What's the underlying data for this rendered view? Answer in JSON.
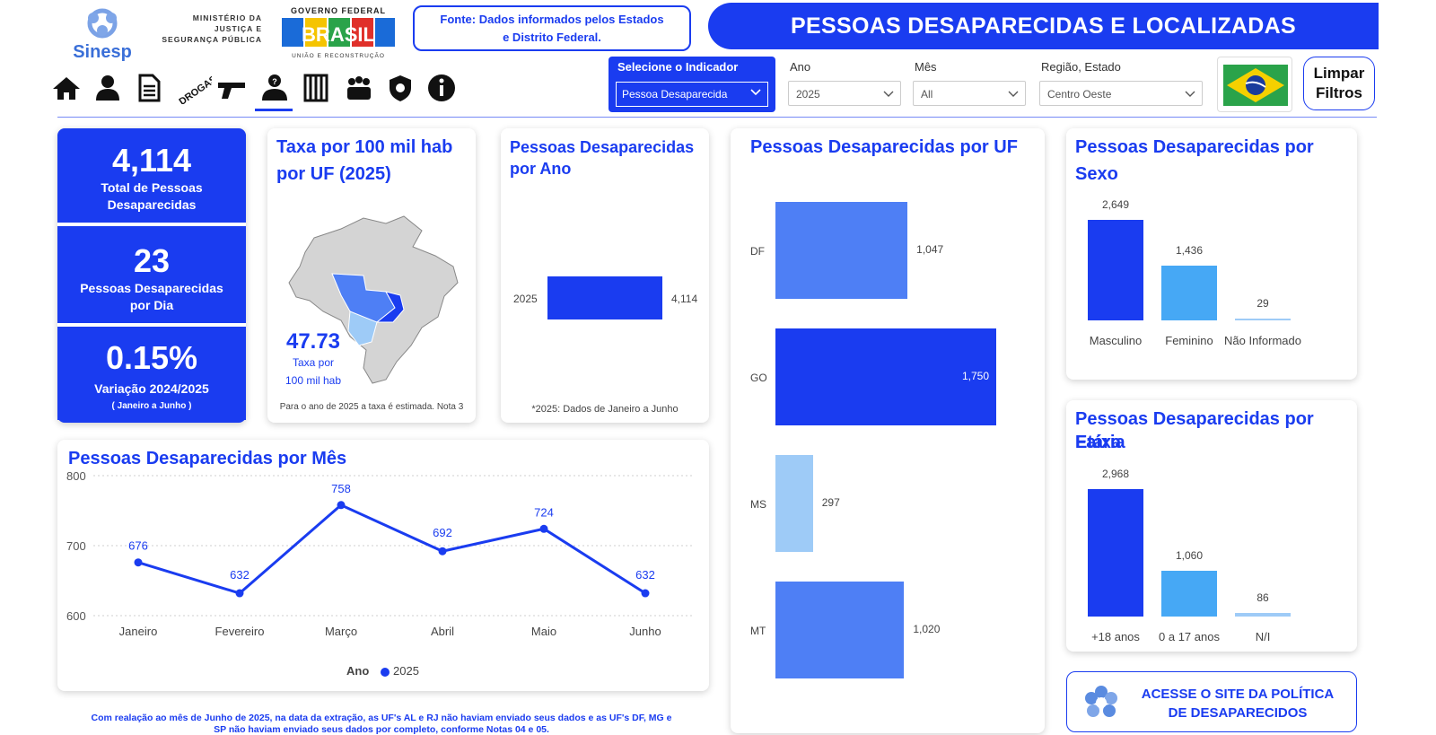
{
  "header": {
    "sinesp_logo_text": "Sinesp",
    "ministry_lines": [
      "MINISTÉRIO DA",
      "JUSTIÇA E",
      "SEGURANÇA PÚBLICA"
    ],
    "gov_logo": {
      "top": "GOVERNO FEDERAL",
      "word": "BRASIL",
      "bottom": "UNIÃO E RECONSTRUÇÃO"
    },
    "fonte_line1": "Fonte: Dados informados pelos Estados",
    "fonte_line2": "e Distrito Federal.",
    "title": "PESSOAS DESAPARECIDAS E LOCALIZADAS"
  },
  "nav": {
    "icons": [
      "home-icon",
      "person-icon",
      "document-icon",
      "drogas-icon",
      "gun-icon",
      "missing-person-icon",
      "prison-icon",
      "group-icon",
      "shield-icon",
      "info-icon"
    ],
    "drogas_label": "DROGAS",
    "active": "missing-person-icon"
  },
  "filters": {
    "indicator_label": "Selecione o Indicador",
    "indicator_value": "Pessoa Desaparecida",
    "ano_label": "Ano",
    "ano_value": "2025",
    "mes_label": "Mês",
    "mes_value": "All",
    "regiao_label": "Região, Estado",
    "regiao_value": "Centro Oeste",
    "limpar_line1": "Limpar",
    "limpar_line2": "Filtros"
  },
  "kpis": {
    "total_value": "4,114",
    "total_label_line1": "Total de Pessoas",
    "total_label_line2": "Desaparecidas",
    "dia_value": "23",
    "dia_label_line1": "Pessoas Desaparecidas",
    "dia_label_line2": "por Dia",
    "var_value": "0.15%",
    "var_label": "Variação 2024/2025",
    "var_sub": "( Janeiro a Junho )"
  },
  "taxa": {
    "title_line1": "Taxa por 100 mil hab",
    "title_line2": "por UF (2025)",
    "value": "47.73",
    "label_line1": "Taxa por",
    "label_line2": "100 mil hab",
    "note": "Para o ano de 2025 a taxa é estimada. Nota 3"
  },
  "ano_card": {
    "title_line1": "Pessoas Desaparecidas",
    "title_line2": "por Ano",
    "note": "*2025: Dados de Janeiro a Junho"
  },
  "mes_card": {
    "title": "Pessoas Desaparecidas por Mês",
    "legend_label": "Ano",
    "legend_series": "2025"
  },
  "uf_card": {
    "title": "Pessoas Desaparecidas por UF"
  },
  "sexo_card": {
    "title_line1": "Pessoas Desaparecidas por",
    "title_line2": "Sexo"
  },
  "faixa_card": {
    "title_line1": "Pessoas Desaparecidas por Faixa",
    "title_line2": "Etária"
  },
  "acesse": {
    "line1": "ACESSE O SITE DA POLÍTICA",
    "line2": "DE DESAPARECIDOS"
  },
  "footnote_line1": "Com realação ao mês de Junho de 2025, na data da extração, as UF's AL e RJ não haviam enviado seus dados e as UF's DF, MG e",
  "footnote_line2": "SP não haviam enviado seus dados por completo, conforme Notas 04 e 05.",
  "colors": {
    "accent": "#1a3cf0",
    "mid": "#4e7ff5",
    "light": "#9ecbf7",
    "sexo2": "#46a8f5"
  },
  "chart_data": [
    {
      "type": "bar",
      "title": "Pessoas Desaparecidas por Ano",
      "categories": [
        "2025"
      ],
      "values": [
        4114
      ],
      "value_labels": [
        "4,114"
      ]
    },
    {
      "type": "line",
      "title": "Pessoas Desaparecidas por Mês",
      "categories": [
        "Janeiro",
        "Fevereiro",
        "Março",
        "Abril",
        "Maio",
        "Junho"
      ],
      "series": [
        {
          "name": "2025",
          "values": [
            676,
            632,
            758,
            692,
            724,
            632
          ]
        }
      ],
      "y_ticks": [
        "800",
        "700",
        "600"
      ],
      "ylim": [
        600,
        800
      ],
      "grid": true,
      "legend": "bottom"
    },
    {
      "type": "bar",
      "title": "Pessoas Desaparecidas por UF",
      "categories": [
        "DF",
        "GO",
        "MS",
        "MT"
      ],
      "values": [
        1047,
        1750,
        297,
        1020
      ],
      "value_labels": [
        "1,047",
        "1,750",
        "297",
        "1,020"
      ]
    },
    {
      "type": "bar",
      "title": "Pessoas Desaparecidas por Sexo",
      "categories": [
        "Masculino",
        "Feminino",
        "Não Informado"
      ],
      "values": [
        2649,
        1436,
        29
      ],
      "value_labels": [
        "2,649",
        "1,436",
        "29"
      ]
    },
    {
      "type": "bar",
      "title": "Pessoas Desaparecidas por Faixa Etária",
      "categories": [
        "+18 anos",
        "0 a 17 anos",
        "N/I"
      ],
      "values": [
        2968,
        1060,
        86
      ],
      "value_labels": [
        "2,968",
        "1,060",
        "86"
      ]
    }
  ]
}
